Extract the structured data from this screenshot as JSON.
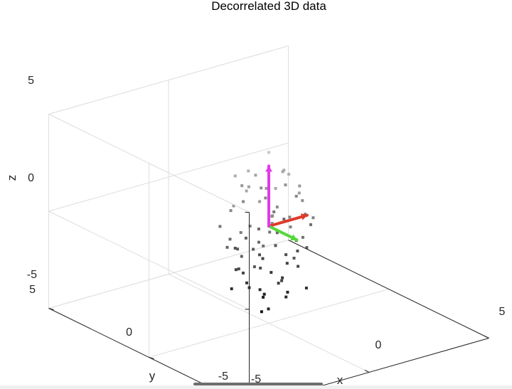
{
  "chart_data": {
    "type": "scatter",
    "title": "Decorrelated 3D data",
    "xlabel": "x",
    "ylabel": "y",
    "zlabel": "z",
    "xlim": [
      -5,
      5
    ],
    "ylim": [
      -5,
      5
    ],
    "zlim": [
      -5,
      5
    ],
    "x_ticks": [
      "-5",
      "0",
      "5"
    ],
    "y_ticks": [
      "-5",
      "0",
      "5"
    ],
    "z_ticks": [
      "-5",
      "0",
      "5"
    ],
    "grid": true,
    "box": true,
    "colormap": "gray (shaded by z)",
    "points": [
      [
        0.0,
        0.0,
        3.8
      ],
      [
        -0.6,
        0.3,
        2.9
      ],
      [
        0.5,
        -0.4,
        2.7
      ],
      [
        -0.9,
        0.6,
        2.6
      ],
      [
        0.8,
        0.2,
        2.5
      ],
      [
        -0.3,
        -0.7,
        2.4
      ],
      [
        1.0,
        0.5,
        2.2
      ],
      [
        -1.1,
        -0.2,
        2.3
      ],
      [
        0.2,
        0.9,
        2.1
      ],
      [
        -0.5,
        0.4,
        2.0
      ],
      [
        0.6,
        -0.8,
        1.9
      ],
      [
        -0.8,
        -0.5,
        1.8
      ],
      [
        1.2,
        -0.1,
        1.7
      ],
      [
        -0.2,
        1.1,
        1.6
      ],
      [
        0.4,
        0.6,
        1.5
      ],
      [
        -1.3,
        0.2,
        1.4
      ],
      [
        0.9,
        -0.6,
        1.3
      ],
      [
        -0.6,
        -0.9,
        1.2
      ],
      [
        0.1,
        -0.3,
        1.1
      ],
      [
        -0.4,
        0.8,
        1.0
      ],
      [
        1.4,
        0.3,
        0.9
      ],
      [
        -1.0,
        0.7,
        0.8
      ],
      [
        0.7,
        1.0,
        0.7
      ],
      [
        -0.1,
        -1.2,
        0.6
      ],
      [
        1.1,
        -0.9,
        0.5
      ],
      [
        -1.5,
        -0.4,
        0.4
      ],
      [
        0.3,
        0.2,
        0.3
      ],
      [
        -0.7,
        0.1,
        0.2
      ],
      [
        0.8,
        0.7,
        0.1
      ],
      [
        -0.3,
        -0.4,
        0.0
      ],
      [
        1.6,
        0.1,
        0.0
      ],
      [
        -1.2,
        1.0,
        -0.1
      ],
      [
        0.5,
        -1.1,
        -0.2
      ],
      [
        -0.9,
        -0.8,
        -0.3
      ],
      [
        0.0,
        0.5,
        -0.4
      ],
      [
        1.3,
        0.8,
        -0.5
      ],
      [
        -0.5,
        -0.1,
        -0.6
      ],
      [
        0.6,
        0.3,
        -0.7
      ],
      [
        -1.4,
        0.4,
        -0.8
      ],
      [
        0.9,
        -0.3,
        -0.9
      ],
      [
        -0.2,
        0.9,
        -1.0
      ],
      [
        1.0,
        -0.7,
        -1.1
      ],
      [
        -0.8,
        0.6,
        -1.2
      ],
      [
        0.3,
        -0.9,
        -1.3
      ],
      [
        -1.1,
        -0.6,
        -1.4
      ],
      [
        0.7,
        0.5,
        -1.5
      ],
      [
        -0.4,
        1.2,
        -1.6
      ],
      [
        1.2,
        0.0,
        -1.7
      ],
      [
        -0.6,
        -0.3,
        -1.8
      ],
      [
        0.2,
        0.7,
        -1.9
      ],
      [
        -1.0,
        0.3,
        -2.0
      ],
      [
        0.8,
        -0.5,
        -2.1
      ],
      [
        -0.3,
        -1.0,
        -2.2
      ],
      [
        0.5,
        0.9,
        -2.3
      ],
      [
        -0.7,
        0.8,
        -2.4
      ],
      [
        1.1,
        0.4,
        -2.5
      ],
      [
        -0.1,
        -0.6,
        -2.6
      ],
      [
        0.4,
        -0.2,
        -2.7
      ],
      [
        -0.9,
        -0.1,
        -2.8
      ],
      [
        0.6,
        0.6,
        -2.9
      ],
      [
        -0.5,
        0.5,
        -3.0
      ],
      [
        0.9,
        -0.8,
        -3.1
      ],
      [
        -0.2,
        0.2,
        -3.3
      ],
      [
        0.3,
        -0.5,
        -3.5
      ],
      [
        -0.6,
        -0.7,
        -3.7
      ],
      [
        0.1,
        0.4,
        -3.9
      ],
      [
        -0.3,
        0.0,
        -4.3
      ],
      [
        0.4,
        0.7,
        -4.0
      ],
      [
        -0.8,
        0.9,
        -3.4
      ],
      [
        0.7,
        -0.1,
        -3.6
      ],
      [
        -1.2,
        0.5,
        -0.5
      ],
      [
        1.5,
        -0.3,
        -0.3
      ],
      [
        -0.7,
        -1.0,
        0.9
      ],
      [
        0.6,
        1.1,
        1.2
      ],
      [
        -0.4,
        0.3,
        -1.2
      ],
      [
        0.2,
        -0.8,
        0.8
      ],
      [
        -1.3,
        -0.2,
        -1.0
      ],
      [
        1.2,
        0.6,
        1.4
      ],
      [
        -0.9,
        0.2,
        -2.2
      ],
      [
        0.8,
        0.1,
        -1.8
      ]
    ],
    "vectors": [
      {
        "color": "#e03a2a",
        "end": [
          1.6,
          0.0,
          0.0
        ]
      },
      {
        "color": "#55d83a",
        "end": [
          0.0,
          -1.4,
          0.0
        ]
      },
      {
        "color": "#e03ae6",
        "end": [
          0.0,
          0.0,
          3.1
        ]
      }
    ]
  }
}
